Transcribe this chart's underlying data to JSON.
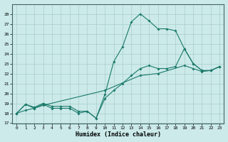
{
  "xlabel": "Humidex (Indice chaleur)",
  "background_color": "#cceaea",
  "grid_color": "#aacccc",
  "line_color": "#1a7a6a",
  "xlim": [
    -0.5,
    23.5
  ],
  "ylim": [
    17,
    29
  ],
  "yticks": [
    17,
    18,
    19,
    20,
    21,
    22,
    23,
    24,
    25,
    26,
    27,
    28
  ],
  "xticks": [
    0,
    1,
    2,
    3,
    4,
    5,
    6,
    7,
    8,
    9,
    10,
    11,
    12,
    13,
    14,
    15,
    16,
    17,
    18,
    19,
    20,
    21,
    22,
    23
  ],
  "line1_x": [
    0,
    1,
    2,
    3,
    4,
    5,
    6,
    7,
    8,
    9,
    10,
    11,
    12,
    13,
    14,
    15,
    16,
    17,
    18,
    19,
    20,
    21,
    22,
    23
  ],
  "line1_y": [
    18.0,
    18.9,
    18.6,
    19.0,
    18.7,
    18.7,
    18.7,
    18.2,
    18.2,
    17.5,
    19.9,
    23.2,
    24.7,
    27.2,
    28.0,
    27.3,
    26.5,
    26.5,
    26.3,
    24.5,
    23.0,
    22.3,
    22.3,
    22.7
  ],
  "line2_x": [
    0,
    1,
    2,
    3,
    4,
    5,
    6,
    7,
    8,
    9,
    10,
    11,
    12,
    13,
    14,
    15,
    16,
    17,
    18,
    19,
    20,
    21,
    22,
    23
  ],
  "line2_y": [
    18.0,
    18.9,
    18.5,
    18.9,
    18.5,
    18.5,
    18.5,
    18.0,
    18.2,
    17.5,
    19.5,
    20.3,
    21.0,
    21.8,
    22.5,
    22.8,
    22.5,
    22.5,
    22.7,
    24.5,
    23.0,
    22.3,
    22.3,
    22.7
  ],
  "line3_x": [
    0,
    1,
    2,
    3,
    10,
    14,
    16,
    19,
    20,
    21,
    22,
    23
  ],
  "line3_y": [
    18.0,
    18.3,
    18.5,
    18.8,
    20.3,
    21.8,
    22.0,
    22.8,
    22.5,
    22.2,
    22.3,
    22.7
  ]
}
